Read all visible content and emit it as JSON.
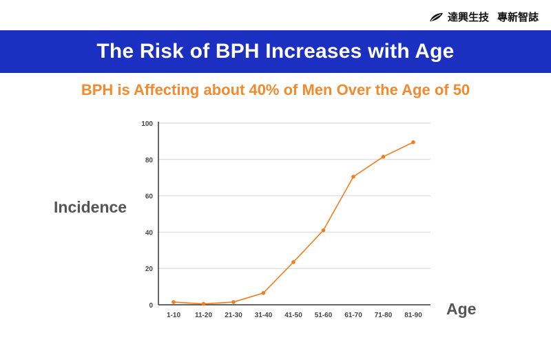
{
  "brand": {
    "name": "達興生技",
    "tagline": "專新智誌",
    "logo_icon": "leaf-logo-icon"
  },
  "header": {
    "title": "The Risk of BPH Increases with Age"
  },
  "subtitle": "BPH is Affecting about 40% of Men Over the Age of 50",
  "colors": {
    "banner": "#1b2fc0",
    "accent": "#f28a2e",
    "line": "#f07d1e",
    "axis_text": "#555555"
  },
  "chart_data": {
    "type": "line",
    "title": "",
    "xlabel": "Age",
    "ylabel": "Incidence",
    "categories": [
      "1-10",
      "11-20",
      "21-30",
      "31-40",
      "41-50",
      "51-60",
      "61-70",
      "71-80",
      "81-90"
    ],
    "series": [
      {
        "values": [
          1.5,
          0.5,
          1.5,
          6.5,
          23.5,
          41,
          70.5,
          81.5,
          89.5
        ]
      }
    ],
    "ylim": [
      0,
      100
    ],
    "yticks": [
      0,
      20,
      40,
      60,
      80,
      100
    ],
    "grid": "horizontal",
    "legend": "none"
  }
}
